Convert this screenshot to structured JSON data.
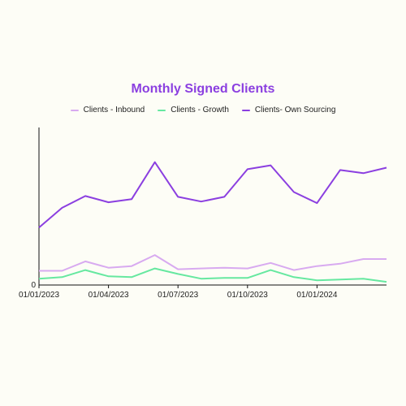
{
  "chart_data": {
    "type": "line",
    "title": "Monthly Signed Clients",
    "x": [
      "01/01/2023",
      "01/02/2023",
      "01/03/2023",
      "01/04/2023",
      "01/05/2023",
      "01/06/2023",
      "01/07/2023",
      "01/08/2023",
      "01/09/2023",
      "01/10/2023",
      "01/11/2023",
      "01/12/2023",
      "01/01/2024",
      "01/02/2024",
      "01/03/2024",
      "01/04/2024"
    ],
    "x_tick_labels": [
      "01/01/2023",
      "01/04/2023",
      "01/07/2023",
      "01/10/2023",
      "01/01/2024"
    ],
    "x_tick_indices": [
      0,
      3,
      6,
      9,
      12
    ],
    "y_tick_labels": [
      "0"
    ],
    "ylim": [
      0,
      100
    ],
    "legend_position": "top-center",
    "grid": false,
    "series": [
      {
        "name": "Clients - Inbound",
        "color": "#d8aaf0",
        "values": [
          9,
          9,
          15,
          11,
          12,
          19,
          10,
          10.5,
          11,
          10.5,
          14,
          9.5,
          12,
          13.5,
          16.5,
          16.5
        ]
      },
      {
        "name": "Clients - Growth",
        "color": "#66e8a0",
        "values": [
          4,
          5,
          9.5,
          5.5,
          5,
          10.5,
          7,
          4,
          4.5,
          4.5,
          9.5,
          5,
          3,
          3.5,
          4,
          2
        ]
      },
      {
        "name": "Clients- Own Sourcing",
        "color": "#8b3fe0",
        "values": [
          36.5,
          49,
          56.5,
          52.5,
          54.5,
          78,
          56,
          53,
          56,
          73.5,
          76,
          59,
          52,
          73,
          71,
          74.5
        ]
      }
    ]
  }
}
